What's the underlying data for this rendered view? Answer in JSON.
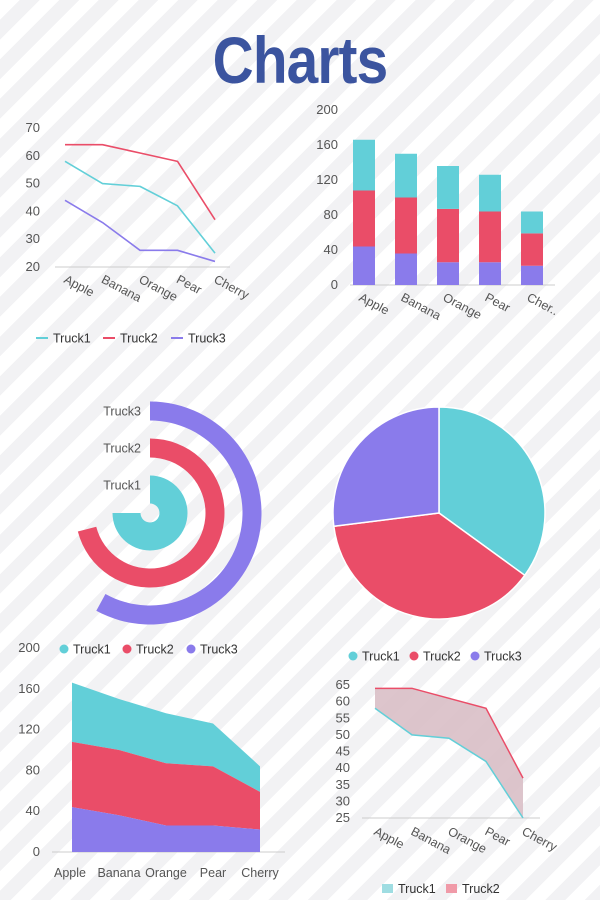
{
  "page": {
    "title": "Charts"
  },
  "colors": {
    "truck1": "#62cfd8",
    "truck2": "#ea4d68",
    "truck3": "#8a7beb",
    "title": "#3b549f"
  },
  "chart_data": [
    {
      "id": "line",
      "type": "line",
      "categories": [
        "Apple",
        "Banana",
        "Orange",
        "Pear",
        "Cherry"
      ],
      "series": [
        {
          "name": "Truck1",
          "values": [
            58,
            50,
            49,
            42,
            25
          ]
        },
        {
          "name": "Truck2",
          "values": [
            64,
            64,
            61,
            58,
            37
          ]
        },
        {
          "name": "Truck3",
          "values": [
            44,
            36,
            26,
            26,
            22
          ]
        }
      ],
      "yticks": [
        20,
        30,
        40,
        50,
        60,
        70
      ],
      "ylim": [
        20,
        70
      ],
      "legend": "bottom"
    },
    {
      "id": "stacked-bar",
      "type": "bar",
      "stacked": true,
      "categories": [
        "Apple",
        "Banana",
        "Orange",
        "Pear",
        "Cher.."
      ],
      "series": [
        {
          "name": "Truck3",
          "values": [
            44,
            36,
            26,
            26,
            22
          ]
        },
        {
          "name": "Truck2",
          "values": [
            64,
            64,
            61,
            58,
            37
          ]
        },
        {
          "name": "Truck1",
          "values": [
            58,
            50,
            49,
            42,
            25
          ]
        }
      ],
      "yticks": [
        0,
        40,
        80,
        120,
        160,
        200
      ],
      "ylim": [
        0,
        200
      ]
    },
    {
      "id": "radial",
      "type": "bar",
      "polar": true,
      "categories": [
        "Truck1",
        "Truck2",
        "Truck3"
      ],
      "values": [
        75,
        71,
        58
      ],
      "max": 100
    },
    {
      "id": "pie",
      "type": "pie",
      "labels": [
        "Truck1",
        "Truck2",
        "Truck3"
      ],
      "values": [
        35,
        38,
        27
      ],
      "legend": "bottom"
    },
    {
      "id": "area",
      "type": "area",
      "stacked": true,
      "categories": [
        "Apple",
        "Banana",
        "Orange",
        "Pear",
        "Cherry"
      ],
      "series": [
        {
          "name": "Truck1",
          "values": [
            58,
            50,
            49,
            42,
            25
          ]
        },
        {
          "name": "Truck2",
          "values": [
            64,
            64,
            61,
            58,
            37
          ]
        },
        {
          "name": "Truck3",
          "values": [
            44,
            36,
            26,
            26,
            22
          ]
        }
      ],
      "yticks": [
        0,
        40,
        80,
        120,
        160,
        200
      ],
      "ylim": [
        0,
        200
      ],
      "legend": "top"
    },
    {
      "id": "range-area",
      "type": "area",
      "categories": [
        "Apple",
        "Banana",
        "Orange",
        "Pear",
        "Cherry"
      ],
      "series": [
        {
          "name": "Truck1",
          "values": [
            58,
            50,
            49,
            42,
            25
          ]
        },
        {
          "name": "Truck2",
          "values": [
            64,
            64,
            61,
            58,
            37
          ]
        }
      ],
      "yticks": [
        25,
        30,
        35,
        40,
        45,
        50,
        55,
        60,
        65
      ],
      "ylim": [
        25,
        65
      ],
      "legend": "bottom"
    }
  ]
}
